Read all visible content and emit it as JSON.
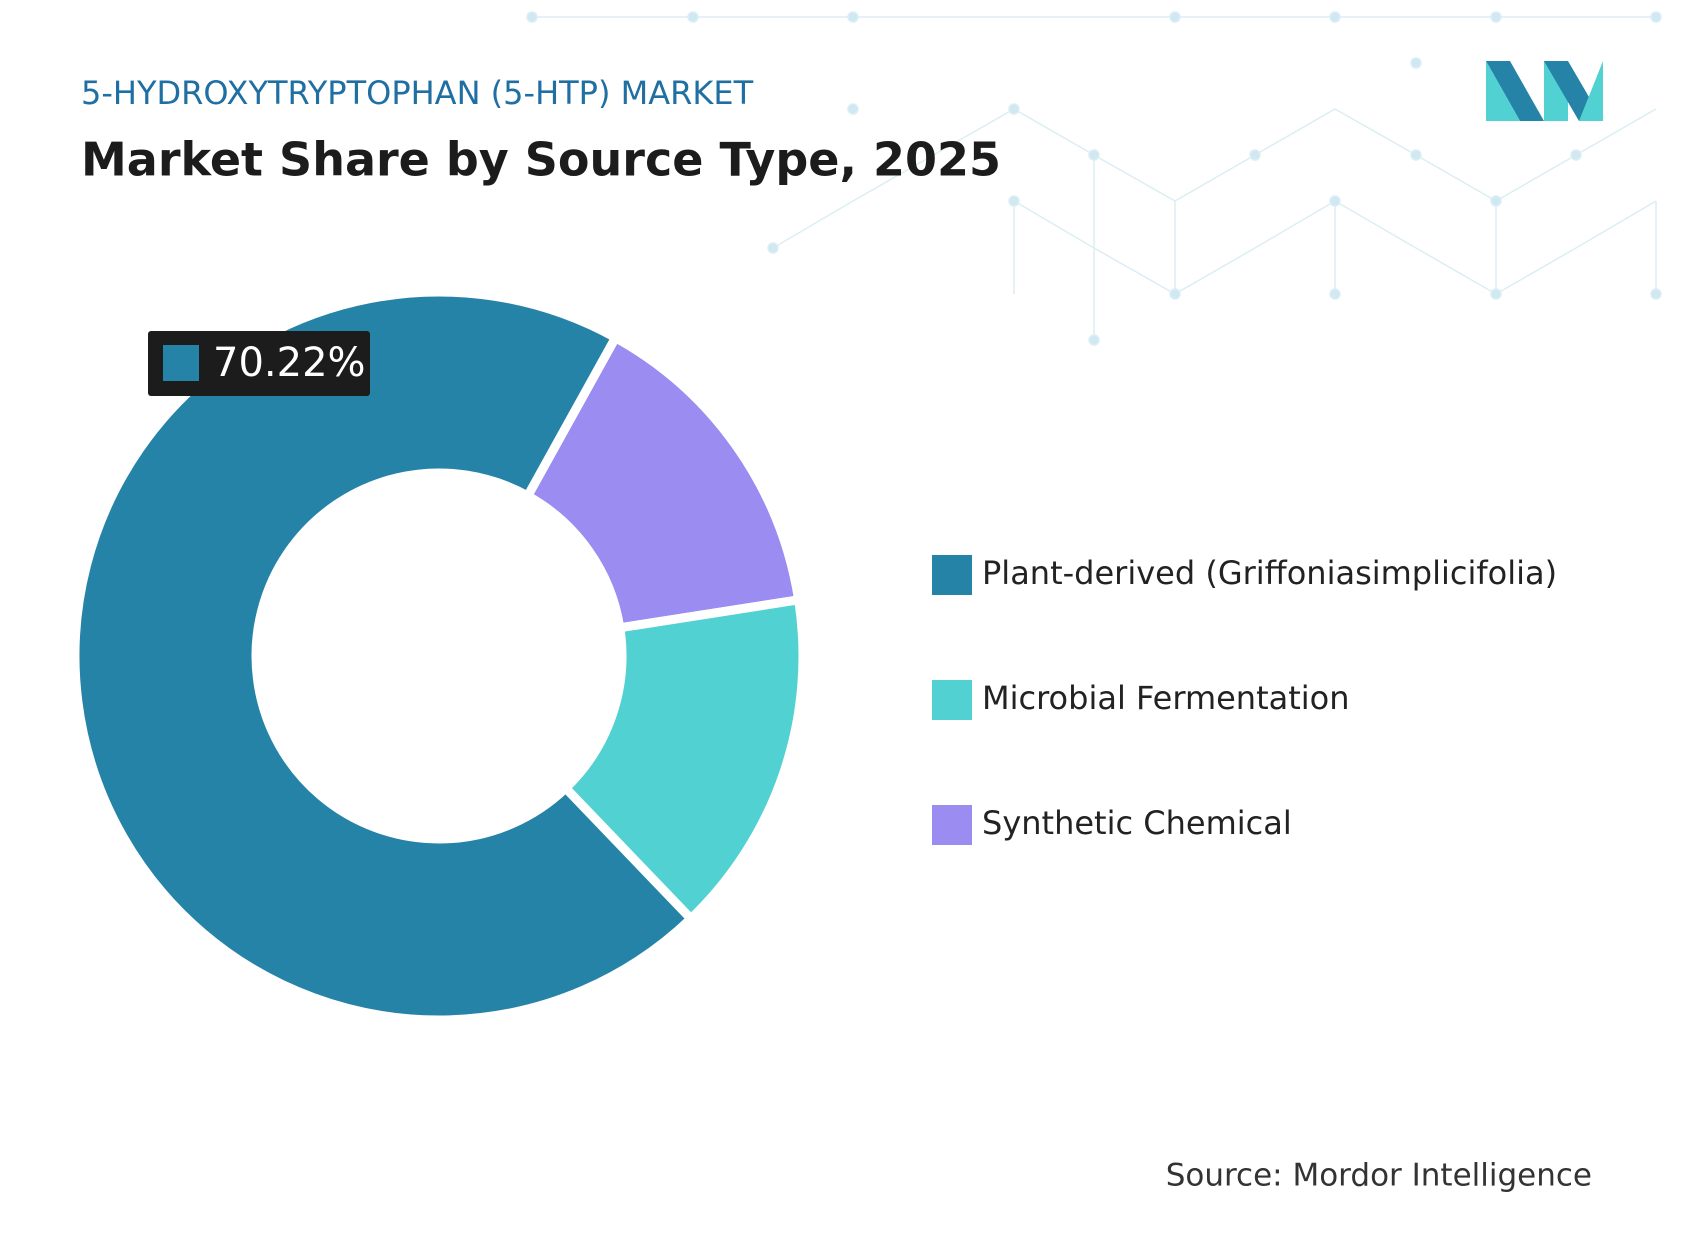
{
  "chart_data": {
    "type": "donut",
    "subtitle": "5-HYDROXYTRYPTOPHAN (5-HTP) MARKET",
    "title": "Market Share by Source Type, 2025",
    "categories": [
      "Plant-derived (Griffoniasimplicifolia)",
      "Microbial Fermentation",
      "Synthetic Chemical"
    ],
    "values": [
      70.22,
      15.3,
      14.48
    ],
    "value_labels": [
      "70.22%",
      null,
      null
    ],
    "colors": [
      "#2683a8",
      "#52d1d3",
      "#9a8cf0"
    ],
    "legend": "right",
    "source": "Source: Mordor Intelligence"
  }
}
